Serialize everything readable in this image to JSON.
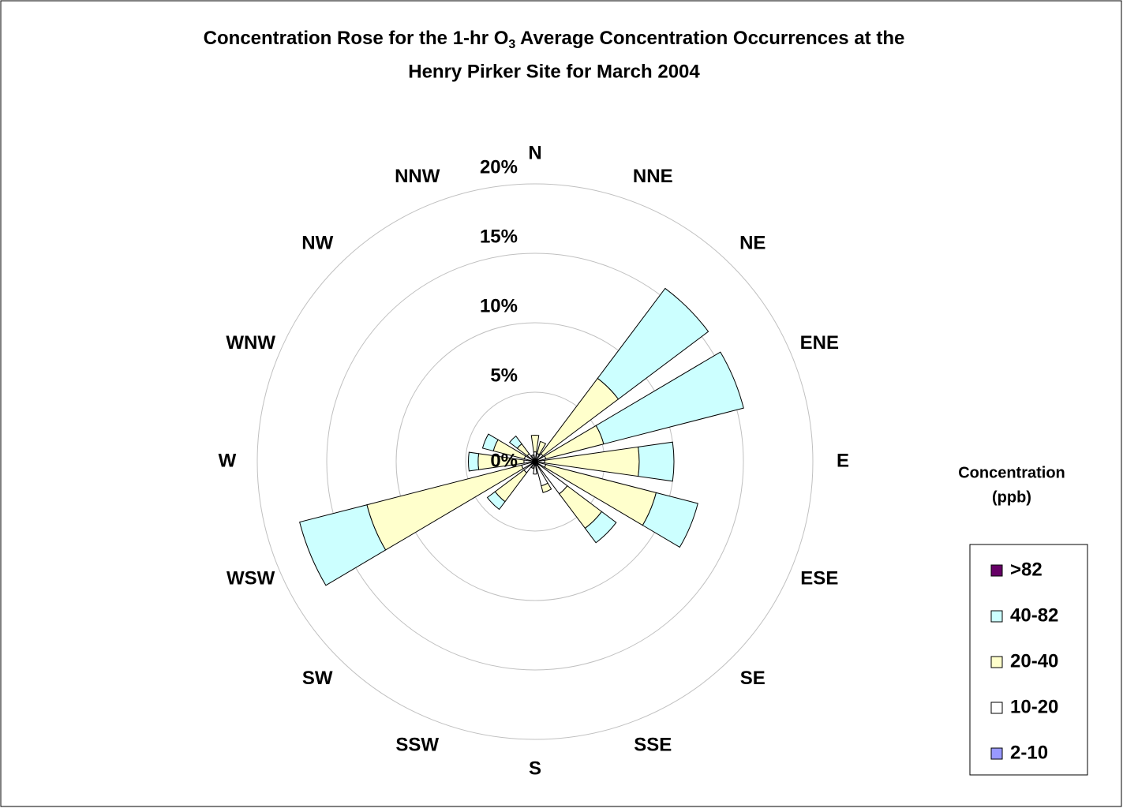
{
  "chart_data": {
    "type": "rose",
    "title": [
      "Concentration Rose for the 1-hr O",
      "3",
      " Average Concentration Occurrences at the",
      "Henry Pirker Site for March 2004"
    ],
    "categories": [
      "N",
      "NNE",
      "NE",
      "ENE",
      "E",
      "ESE",
      "SE",
      "SSE",
      "S",
      "SSW",
      "SW",
      "WSW",
      "W",
      "WNW",
      "NW",
      "NNW"
    ],
    "rlim": [
      0,
      20
    ],
    "rticks": [
      {
        "value": 0,
        "label": "0%"
      },
      {
        "value": 5,
        "label": "5%"
      },
      {
        "value": 10,
        "label": "10%"
      },
      {
        "value": 15,
        "label": "15%"
      },
      {
        "value": 20,
        "label": "20%"
      }
    ],
    "grid": true,
    "legend_title": [
      "Concentration",
      "(ppb)"
    ],
    "legend_position": "right",
    "series": [
      {
        "name": "2-10",
        "color": "#9999ff",
        "values": [
          0.2,
          0.2,
          0.2,
          0.2,
          0.2,
          0.2,
          0.3,
          0.3,
          0.3,
          0.2,
          0.2,
          0.3,
          0.2,
          0.2,
          0.2,
          0.2
        ]
      },
      {
        "name": "10-20",
        "color": "#ffffff",
        "values": [
          0.5,
          0.4,
          0.5,
          0.6,
          0.5,
          0.6,
          2.6,
          1.5,
          0.6,
          0.3,
          0.8,
          0.7,
          0.6,
          0.6,
          0.5,
          0.3
        ]
      },
      {
        "name": "20-40",
        "color": "#ffffcc",
        "values": [
          1.2,
          0.9,
          6.8,
          4.3,
          6.8,
          8.2,
          3.1,
          0.5,
          0,
          0,
          2.6,
          11.5,
          3.3,
          2.3,
          0.9,
          0
        ]
      },
      {
        "name": "40-82",
        "color": "#ccffff",
        "values": [
          0,
          0,
          8.1,
          10.4,
          2.5,
          3.1,
          1.3,
          0,
          0,
          0,
          0.7,
          5.0,
          0.7,
          0.8,
          0.7,
          0
        ]
      },
      {
        "name": ">82",
        "color": "#660066",
        "values": [
          0,
          0,
          0,
          0,
          0,
          0,
          0,
          0,
          0,
          0,
          0,
          0,
          0,
          0,
          0,
          0
        ]
      }
    ]
  }
}
